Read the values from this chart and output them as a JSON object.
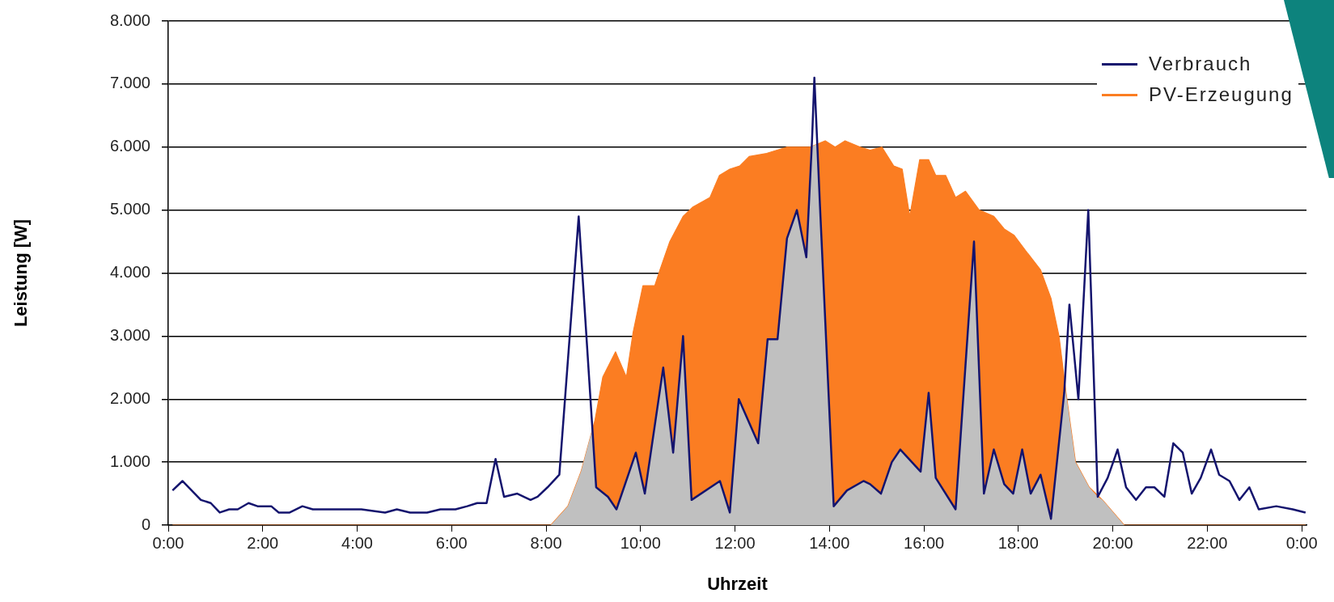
{
  "chart_data": {
    "type": "line",
    "xlabel": "Uhrzeit",
    "ylabel": "Leistung [W]",
    "xlim": [
      0,
      24.1
    ],
    "xticks": [
      {
        "value": 0,
        "label": "0:00"
      },
      {
        "value": 2,
        "label": "2:00"
      },
      {
        "value": 4,
        "label": "4:00"
      },
      {
        "value": 6,
        "label": "6:00"
      },
      {
        "value": 8,
        "label": "8:00"
      },
      {
        "value": 10,
        "label": "10:00"
      },
      {
        "value": 12,
        "label": "12:00"
      },
      {
        "value": 14,
        "label": "14:00"
      },
      {
        "value": 16,
        "label": "16:00"
      },
      {
        "value": 18,
        "label": "18:00"
      },
      {
        "value": 20,
        "label": "20:00"
      },
      {
        "value": 22,
        "label": "22:00"
      },
      {
        "value": 24,
        "label": "0:00"
      }
    ],
    "ylim": [
      0,
      8000
    ],
    "yticks": [
      {
        "value": 0,
        "label": "0"
      },
      {
        "value": 1000,
        "label": "1.000"
      },
      {
        "value": 2000,
        "label": "2.000"
      },
      {
        "value": 3000,
        "label": "3.000"
      },
      {
        "value": 4000,
        "label": "4.000"
      },
      {
        "value": 5000,
        "label": "5.000"
      },
      {
        "value": 6000,
        "label": "6.000"
      },
      {
        "value": 7000,
        "label": "7.000"
      },
      {
        "value": 8000,
        "label": "8.000"
      }
    ],
    "grid": "y",
    "legend": "top right",
    "marker": "none",
    "series": [
      {
        "name": "Verbrauch",
        "type": "line",
        "color": "#14146e",
        "x": [
          0.09,
          0.3,
          0.69,
          0.9,
          1.09,
          1.29,
          1.47,
          1.7,
          1.89,
          2.18,
          2.34,
          2.57,
          2.84,
          3.06,
          3.7,
          3.77,
          4.09,
          4.59,
          4.84,
          5.12,
          5.48,
          5.76,
          6.08,
          6.33,
          6.54,
          6.74,
          6.93,
          7.11,
          7.39,
          7.67,
          7.82,
          8.03,
          8.28,
          8.69,
          9.06,
          9.31,
          9.49,
          9.9,
          10.09,
          10.48,
          10.69,
          10.9,
          11.08,
          11.68,
          11.89,
          12.08,
          12.49,
          12.69,
          12.9,
          13.1,
          13.31,
          13.51,
          13.63,
          13.68,
          13.8,
          14.09,
          14.37,
          14.72,
          14.86,
          15.09,
          15.32,
          15.5,
          15.93,
          16.1,
          16.25,
          16.67,
          17.06,
          17.27,
          17.48,
          17.7,
          17.89,
          18.08,
          18.26,
          18.47,
          18.69,
          18.97,
          19.08,
          19.27,
          19.48,
          19.68,
          19.89,
          20.1,
          20.28,
          20.49,
          20.7,
          20.88,
          21.09,
          21.28,
          21.48,
          21.67,
          21.86,
          22.08,
          22.25,
          22.47,
          22.68,
          22.89,
          23.09,
          23.46,
          23.81,
          24.08
        ],
        "values": [
          550,
          700,
          400,
          350,
          200,
          250,
          250,
          350,
          300,
          300,
          200,
          200,
          300,
          250,
          250,
          250,
          250,
          200,
          250,
          200,
          200,
          250,
          250,
          300,
          350,
          350,
          1050,
          450,
          500,
          400,
          450,
          600,
          800,
          4900,
          600,
          450,
          250,
          1150,
          500,
          2500,
          1150,
          3000,
          400,
          700,
          200,
          2000,
          1300,
          2950,
          2950,
          4550,
          5000,
          4250,
          6100,
          7100,
          5050,
          300,
          550,
          700,
          650,
          500,
          1000,
          1200,
          850,
          2100,
          750,
          250,
          4500,
          500,
          1200,
          650,
          500,
          1200,
          500,
          800,
          100,
          2100,
          3500,
          2000,
          5000,
          450,
          750,
          1200,
          600,
          400,
          600,
          600,
          450,
          1300,
          1150,
          500,
          750,
          1200,
          800,
          700,
          400,
          600,
          250,
          300,
          250,
          200
        ]
      },
      {
        "type": "area",
        "color": "#c0c0c0",
        "x": [
          8.1,
          8.46,
          8.74,
          8.97,
          9.06,
          9.31,
          9.49,
          9.9,
          10.09,
          10.48,
          10.69,
          10.9,
          11.08,
          11.68,
          11.89,
          12.08,
          12.49,
          12.69,
          12.9,
          13.1,
          13.31,
          13.51,
          13.6,
          13.74,
          13.8,
          14.09,
          14.37,
          14.72,
          14.86,
          15.09,
          15.32,
          15.5,
          15.93,
          16.1,
          16.25,
          16.67,
          17.06,
          17.27,
          17.48,
          17.7,
          17.89,
          18.08,
          18.26,
          18.47,
          18.69,
          18.97,
          18.99,
          19.21,
          19.5,
          19.68,
          19.78,
          20.24
        ],
        "values": [
          0,
          300,
          850,
          1500,
          600,
          450,
          250,
          1150,
          500,
          2500,
          1150,
          3000,
          400,
          700,
          200,
          2000,
          1300,
          2950,
          2950,
          4550,
          5000,
          4250,
          6000,
          6050,
          5050,
          300,
          550,
          700,
          650,
          500,
          1000,
          1200,
          850,
          2100,
          750,
          250,
          4500,
          500,
          1200,
          650,
          500,
          1200,
          500,
          800,
          100,
          2100,
          2200,
          1000,
          600,
          450,
          400,
          0
        ]
      },
      {
        "name": "PV-Erzeugung",
        "type": "area",
        "color": "#fb7d22",
        "x": [
          0.09,
          8.1,
          8.46,
          8.74,
          9.03,
          9.2,
          9.47,
          9.7,
          9.84,
          10.05,
          10.3,
          10.41,
          10.62,
          10.9,
          11.11,
          11.47,
          11.67,
          11.89,
          12.1,
          12.3,
          12.67,
          13.1,
          13.59,
          13.91,
          14.12,
          14.33,
          14.65,
          14.86,
          15.11,
          15.36,
          15.54,
          15.7,
          15.91,
          16.1,
          16.25,
          16.46,
          16.67,
          16.88,
          17.17,
          17.48,
          17.7,
          17.91,
          18.16,
          18.47,
          18.69,
          18.86,
          19.0,
          19.21,
          19.5,
          19.78,
          20.24,
          24.08
        ],
        "values": [
          0,
          0,
          300,
          850,
          1650,
          2350,
          2750,
          2350,
          3050,
          3800,
          3800,
          4050,
          4500,
          4900,
          5050,
          5200,
          5550,
          5650,
          5700,
          5850,
          5900,
          6000,
          6000,
          6100,
          6000,
          6100,
          6000,
          5950,
          6000,
          5700,
          5650,
          4900,
          5800,
          5800,
          5550,
          5550,
          5200,
          5300,
          5000,
          4900,
          4700,
          4600,
          4350,
          4050,
          3600,
          3000,
          2150,
          1000,
          600,
          400,
          0,
          0
        ]
      }
    ]
  }
}
